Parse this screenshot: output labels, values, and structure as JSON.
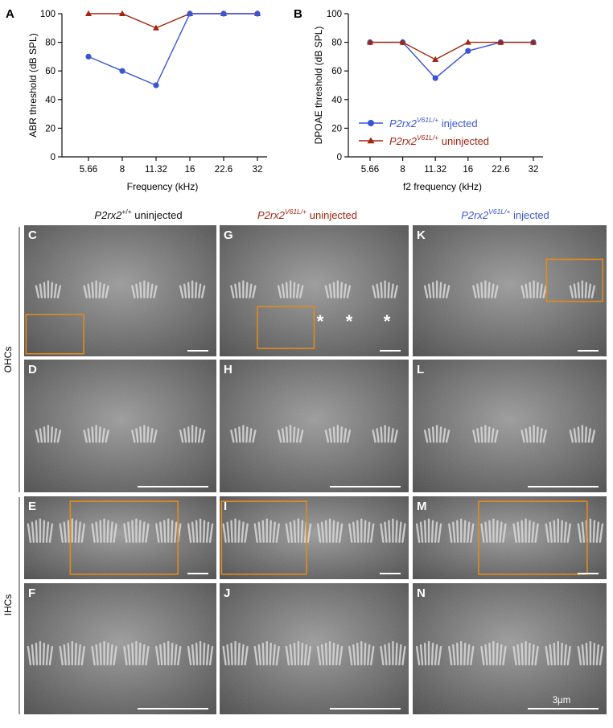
{
  "colors": {
    "injected": "#3a55d6",
    "uninjected": "#a3240f",
    "box": "#e08a1e",
    "micrograph_dark": "#3c3c3c",
    "micrograph_light": "#9a9a9a"
  },
  "chart_data": [
    {
      "panel": "A",
      "type": "line",
      "xlabel": "Frequency (kHz)",
      "ylabel": "ABR threshold (dB SPL)",
      "categories": [
        "5.66",
        "8",
        "11.32",
        "16",
        "22.6",
        "32"
      ],
      "ylim": [
        0,
        100
      ],
      "yticks": [
        "0",
        "20",
        "40",
        "60",
        "80",
        "100"
      ],
      "grid": false,
      "legend": "none",
      "series": [
        {
          "color": "#a3240f",
          "marker": "triangle",
          "values": [
            100,
            100,
            90,
            100,
            100,
            100
          ]
        },
        {
          "color": "#3a55d6",
          "marker": "circle",
          "values": [
            70,
            60,
            50,
            100,
            100,
            100
          ]
        }
      ]
    },
    {
      "panel": "B",
      "type": "line",
      "xlabel": "f2 frequency (kHz)",
      "ylabel": "DPOAE threshold (dB SPL)",
      "categories": [
        "5.66",
        "8",
        "11.32",
        "16",
        "22.6",
        "32"
      ],
      "ylim": [
        0,
        100
      ],
      "yticks": [
        "0",
        "20",
        "40",
        "60",
        "80",
        "100"
      ],
      "grid": false,
      "legend": "bottom-left",
      "series": [
        {
          "gene": "P2rx2",
          "superscript": "V61L/+",
          "suffix": " injected",
          "color": "#3a55d6",
          "marker": "circle",
          "values": [
            80,
            80,
            55,
            74,
            80,
            80
          ]
        },
        {
          "gene": "P2rx2",
          "superscript": "V61L/+",
          "suffix": " uninjected",
          "color": "#a3240f",
          "marker": "triangle",
          "values": [
            80,
            80,
            68,
            80,
            80,
            80
          ]
        }
      ]
    }
  ],
  "micrographs": {
    "columns": [
      {
        "gene": "P2rx2",
        "superscript": "+/+",
        "suffix": " uninjected",
        "color": "#111111"
      },
      {
        "gene": "P2rx2",
        "superscript": "V61L/+",
        "suffix": " uninjected",
        "color": "#a3240f"
      },
      {
        "gene": "P2rx2",
        "superscript": "V61L/+",
        "suffix": " injected",
        "color": "#3a55d6"
      }
    ],
    "row_labels": [
      "OHCs",
      "IHCs"
    ],
    "panels": [
      [
        "C",
        "G",
        "K"
      ],
      [
        "D",
        "H",
        "L"
      ],
      [
        "E",
        "I",
        "M"
      ],
      [
        "F",
        "J",
        "N"
      ]
    ],
    "asterisk": "*",
    "scale_label": "3μm"
  }
}
